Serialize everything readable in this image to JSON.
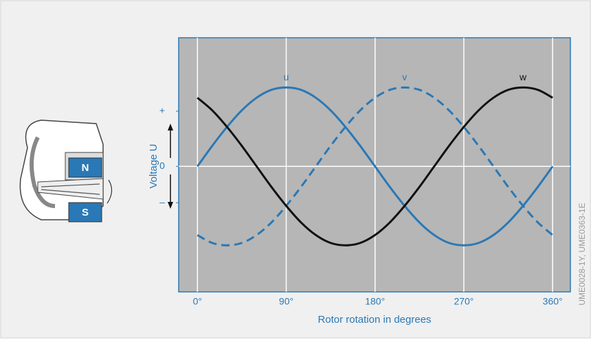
{
  "chart_data": {
    "type": "line",
    "x_label": "Rotor rotation in degrees",
    "y_label": "Voltage U",
    "credit": "UME0028-1Y, UME0363-1E",
    "illustration_labels": [
      "N",
      "S"
    ],
    "x": [
      0,
      15,
      30,
      45,
      60,
      75,
      90,
      105,
      120,
      135,
      150,
      165,
      180,
      195,
      210,
      225,
      240,
      255,
      270,
      285,
      300,
      315,
      330,
      345,
      360
    ],
    "series": [
      {
        "name": "u",
        "color": "#2a78b5",
        "dashed": false,
        "values": [
          0,
          0.26,
          0.5,
          0.71,
          0.87,
          0.97,
          1,
          0.97,
          0.87,
          0.71,
          0.5,
          0.26,
          0,
          -0.26,
          -0.5,
          -0.71,
          -0.87,
          -0.97,
          -1,
          -0.97,
          -0.87,
          -0.71,
          -0.5,
          -0.26,
          0
        ]
      },
      {
        "name": "v",
        "color": "#2a78b5",
        "dashed": true,
        "values": [
          -0.87,
          -0.97,
          -1,
          -0.97,
          -0.87,
          -0.71,
          -0.5,
          -0.26,
          0,
          0.26,
          0.5,
          0.71,
          0.87,
          0.97,
          1,
          0.97,
          0.87,
          0.71,
          0.5,
          0.26,
          0,
          -0.26,
          -0.5,
          -0.71,
          -0.87
        ]
      },
      {
        "name": "w",
        "color": "#111111",
        "dashed": false,
        "values": [
          0.87,
          0.71,
          0.5,
          0.26,
          0,
          -0.26,
          -0.5,
          -0.71,
          -0.87,
          -0.97,
          -1,
          -0.97,
          -0.87,
          -0.71,
          -0.5,
          -0.26,
          0,
          0.26,
          0.5,
          0.71,
          0.87,
          0.97,
          1,
          0.97,
          0.87
        ]
      }
    ],
    "xlim": [
      -19,
      378
    ],
    "ylim": [
      -1.59,
      1.63
    ],
    "xticks": [
      {
        "value": 0,
        "label": "0°"
      },
      {
        "value": 90,
        "label": "90°"
      },
      {
        "value": 180,
        "label": "180°"
      },
      {
        "value": 270,
        "label": "270°"
      },
      {
        "value": 360,
        "label": "360°"
      }
    ],
    "yticks": [
      {
        "value": -0.46,
        "label": "–"
      },
      0,
      {
        "value": 0.7,
        "label": "+"
      }
    ],
    "grid": true
  }
}
